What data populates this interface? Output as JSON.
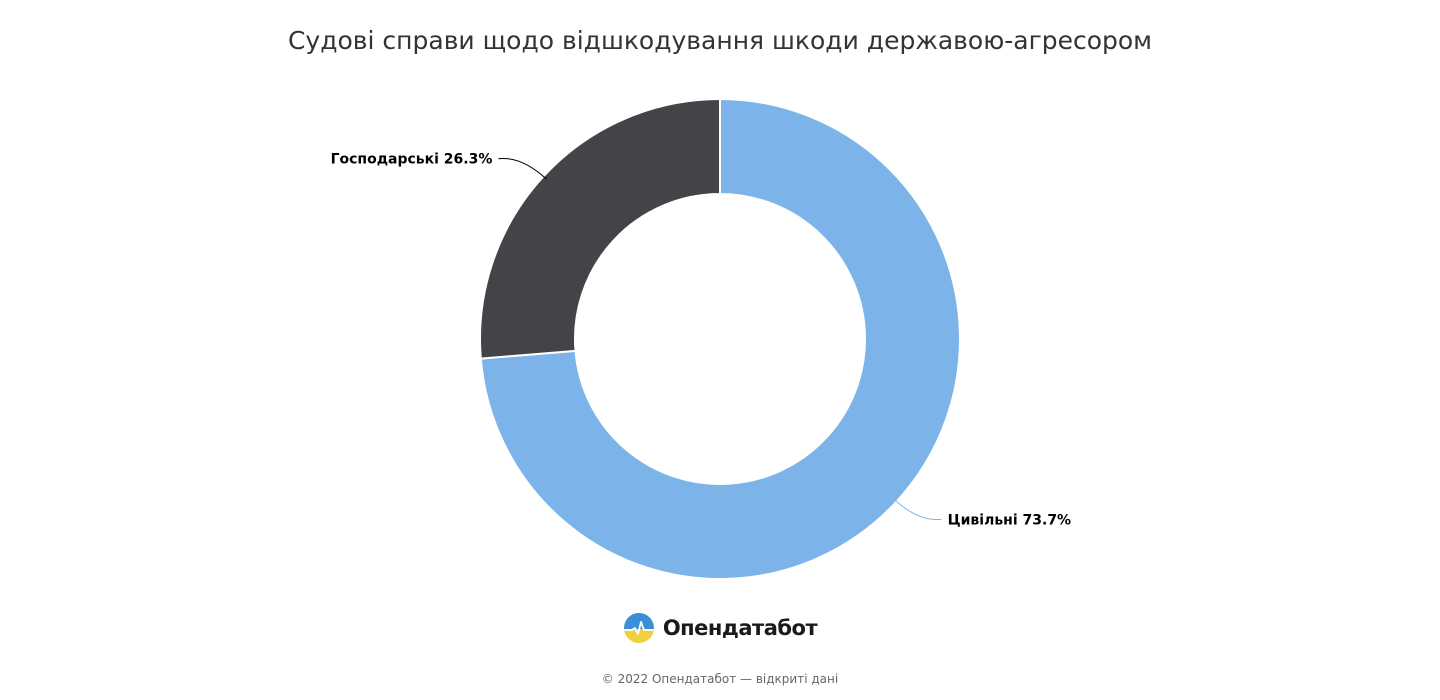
{
  "chart_data": {
    "type": "pie",
    "variant": "donut",
    "title": "Судові справи щодо відшкодування шкоди державою-агресором",
    "slices": [
      {
        "label": "Цивільні",
        "value": 73.7,
        "value_label": "73.7%",
        "color": "#7cb4ea"
      },
      {
        "label": "Господарські",
        "value": 26.3,
        "value_label": "26.3%",
        "color": "#434348"
      }
    ],
    "start_angle": "top",
    "direction": "clockwise",
    "label_style": "outside with connector lines"
  },
  "branding": {
    "name": "Опендатабот",
    "logo_colors": [
      "#3b8fd9",
      "#f2cf3f"
    ]
  },
  "footer": "© 2022 Опендатабот — відкриті дані"
}
